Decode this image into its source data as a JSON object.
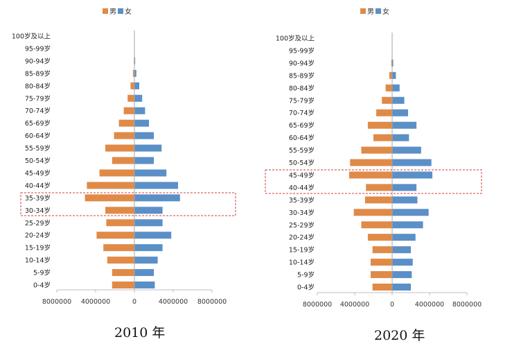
{
  "chart_data": [
    {
      "type": "bar",
      "title": "2010 年",
      "categories": [
        "0-4岁",
        "5-9岁",
        "10-14岁",
        "15-19岁",
        "20-24岁",
        "25-29岁",
        "30-34岁",
        "35-39岁",
        "40-44岁",
        "45-49岁",
        "50-54岁",
        "55-59岁",
        "60-64岁",
        "65-69岁",
        "70-74岁",
        "75-79岁",
        "80-84岁",
        "85-89岁",
        "90-94岁",
        "95-99岁",
        "100岁及以上"
      ],
      "series": [
        {
          "name": "男",
          "color": "#e08a48",
          "values": [
            2300000,
            2300000,
            2800000,
            3200000,
            3900000,
            2900000,
            3000000,
            5100000,
            4900000,
            3600000,
            2300000,
            3000000,
            2100000,
            1600000,
            1100000,
            700000,
            400000,
            150000,
            50000,
            15000,
            5000
          ]
        },
        {
          "name": "女",
          "color": "#5b8fc7",
          "values": [
            2100000,
            2000000,
            2400000,
            2900000,
            3800000,
            2900000,
            2900000,
            4700000,
            4500000,
            3300000,
            2000000,
            2800000,
            2000000,
            1500000,
            1100000,
            800000,
            500000,
            200000,
            80000,
            25000,
            8000
          ]
        }
      ],
      "xlim": [
        -8000000,
        8000000
      ],
      "xticks": [
        "8000000",
        "4000000",
        "0",
        "4000000",
        "8000000"
      ],
      "legend": "top-center",
      "highlighted_groups": [
        "30-34岁",
        "35-39岁"
      ]
    },
    {
      "type": "bar",
      "title": "2020 年",
      "categories": [
        "0-4岁",
        "5-9岁",
        "10-14岁",
        "15-19岁",
        "20-24岁",
        "25-29岁",
        "30-34岁",
        "35-39岁",
        "40-44岁",
        "45-49岁",
        "50-54岁",
        "55-59岁",
        "60-64岁",
        "65-69岁",
        "70-74岁",
        "75-79岁",
        "80-84岁",
        "85-89岁",
        "90-94岁",
        "95-99岁",
        "100岁及以上"
      ],
      "series": [
        {
          "name": "男",
          "color": "#e08a48",
          "values": [
            2100000,
            2300000,
            2300000,
            2100000,
            2600000,
            3300000,
            4100000,
            2900000,
            2800000,
            4600000,
            4500000,
            3300000,
            2000000,
            2600000,
            1700000,
            1100000,
            700000,
            300000,
            90000,
            20000,
            8000
          ]
        },
        {
          "name": "女",
          "color": "#5b8fc7",
          "values": [
            2000000,
            2100000,
            2200000,
            2000000,
            2500000,
            3300000,
            3900000,
            2700000,
            2600000,
            4300000,
            4200000,
            3100000,
            1800000,
            2600000,
            1700000,
            1300000,
            800000,
            400000,
            120000,
            40000,
            10000
          ]
        }
      ],
      "xlim": [
        -8000000,
        8000000
      ],
      "xticks": [
        "8000000",
        "4000000",
        "0",
        "4000000",
        "8000000"
      ],
      "legend": "top-center",
      "highlighted_groups": [
        "40-44岁",
        "45-49岁"
      ]
    }
  ]
}
